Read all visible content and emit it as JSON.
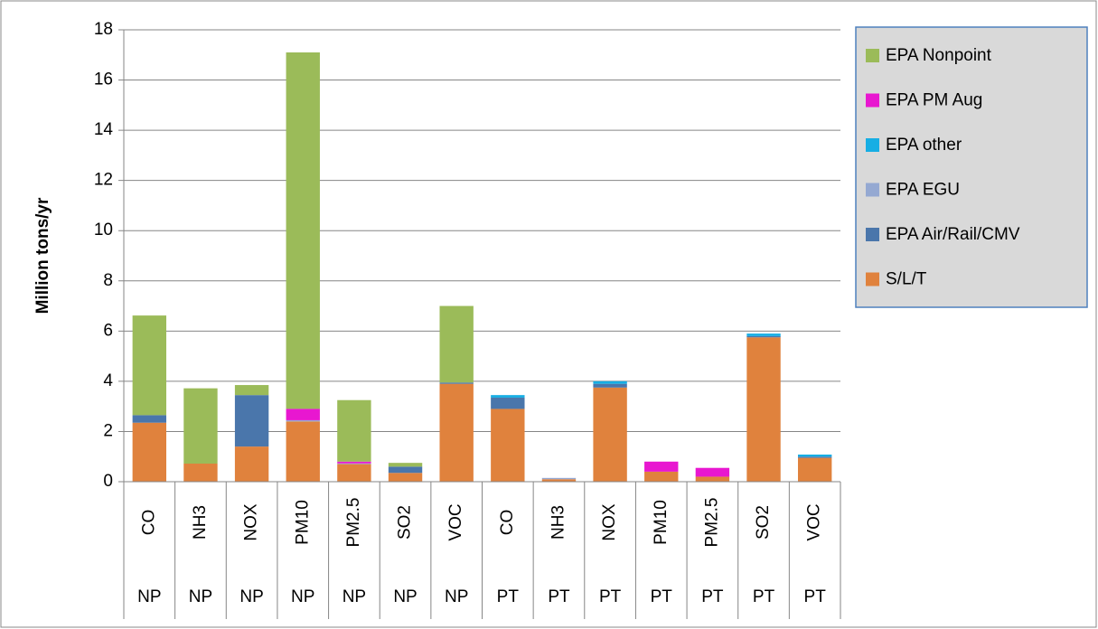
{
  "chart_data": {
    "type": "stacked_bar",
    "ylabel": "Million tons/yr",
    "categories": [
      "CO",
      "NH3",
      "NOX",
      "PM10",
      "PM2.5",
      "SO2",
      "VOC",
      "CO",
      "NH3",
      "NOX",
      "PM10",
      "PM2.5",
      "SO2",
      "VOC"
    ],
    "groups": [
      "NP",
      "NP",
      "NP",
      "NP",
      "NP",
      "NP",
      "NP",
      "PT",
      "PT",
      "PT",
      "PT",
      "PT",
      "PT",
      "PT"
    ],
    "series": [
      {
        "name": "S/L/T",
        "color": "#e0823d",
        "values": [
          2.35,
          0.72,
          1.4,
          2.4,
          0.7,
          0.35,
          3.9,
          2.9,
          0.1,
          3.75,
          0.4,
          0.2,
          5.75,
          0.95
        ]
      },
      {
        "name": "EPA Air/Rail/CMV",
        "color": "#4a76ab",
        "values": [
          0.3,
          0,
          2.05,
          0,
          0,
          0.25,
          0.05,
          0.45,
          0,
          0.15,
          0,
          0,
          0.05,
          0.05
        ]
      },
      {
        "name": "EPA EGU",
        "color": "#95a9d2",
        "values": [
          0,
          0,
          0,
          0.05,
          0.03,
          0,
          0,
          0,
          0.05,
          0,
          0,
          0,
          0,
          0
        ]
      },
      {
        "name": "EPA other",
        "color": "#16aee4",
        "values": [
          0,
          0,
          0,
          0,
          0,
          0,
          0,
          0.1,
          0,
          0.1,
          0,
          0,
          0.1,
          0.08
        ]
      },
      {
        "name": "EPA PM Aug",
        "color": "#e817d0",
        "values": [
          0,
          0,
          0,
          0.45,
          0.07,
          0,
          0,
          0,
          0,
          0,
          0.4,
          0.35,
          0,
          0
        ]
      },
      {
        "name": "EPA Nonpoint",
        "color": "#9bbb59",
        "values": [
          3.97,
          3.0,
          0.4,
          14.2,
          2.45,
          0.15,
          3.05,
          0,
          0,
          0,
          0,
          0,
          0,
          0
        ]
      }
    ],
    "ylim": [
      0,
      18
    ],
    "yticks": [
      0,
      2,
      4,
      6,
      8,
      10,
      12,
      14,
      16,
      18
    ],
    "grid": true,
    "legend": "right"
  }
}
